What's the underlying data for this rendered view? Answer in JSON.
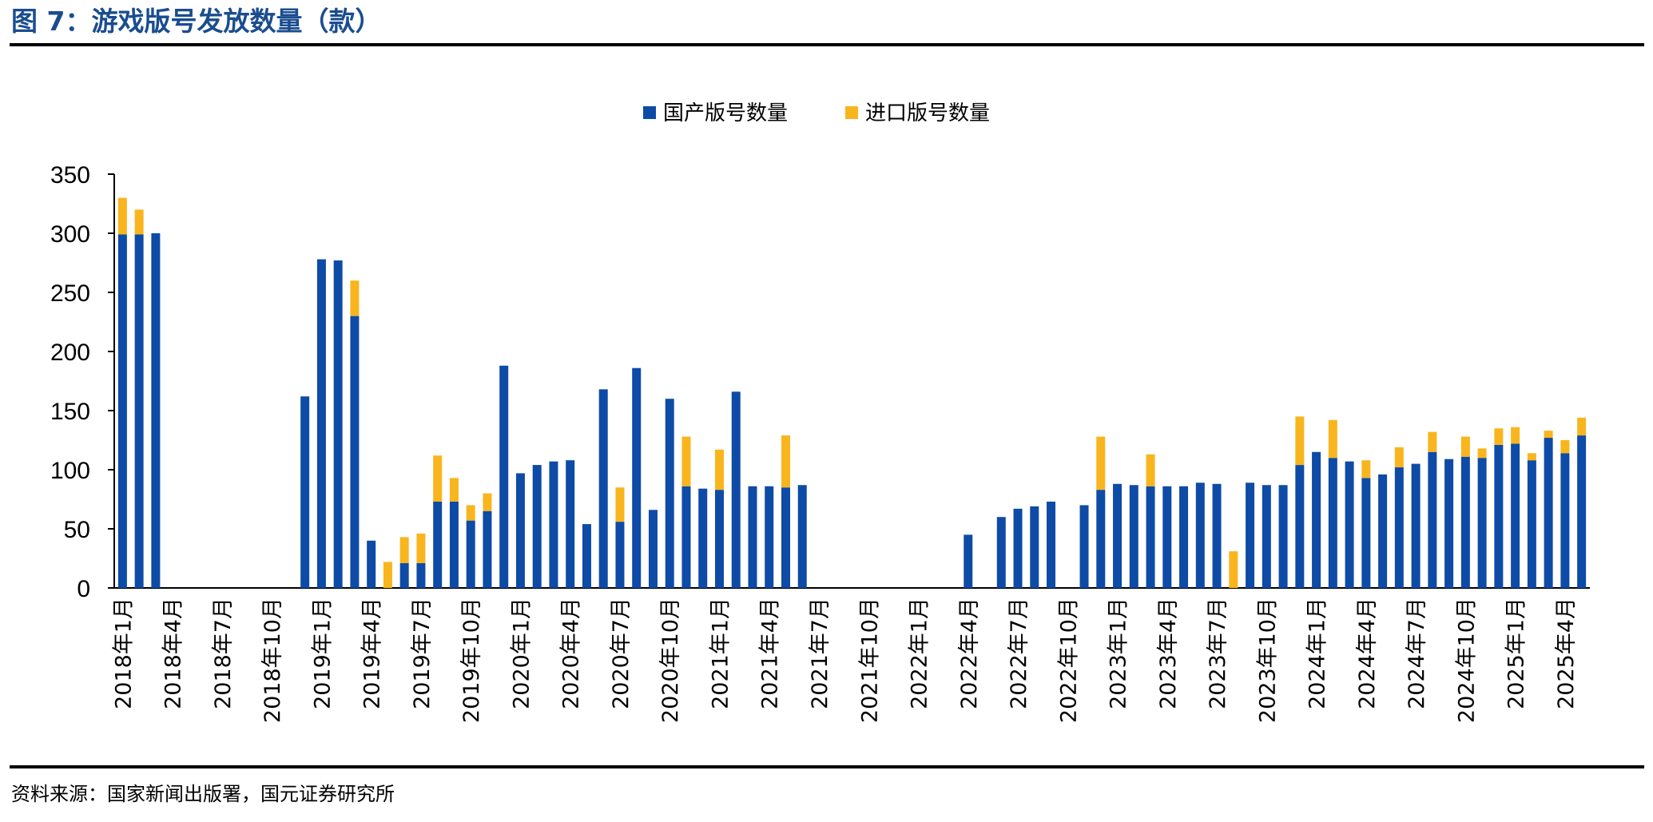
{
  "figure_title": "图 7：游戏版号发放数量（款）",
  "source_note": "资料来源：国家新闻出版署，国元证券研究所",
  "colors": {
    "domestic": "#0d4ba6",
    "imported": "#f9b51e",
    "title": "#1a4d8f"
  },
  "chart_data": {
    "type": "bar",
    "stacked": true,
    "legend_position": "top-center",
    "grid": false,
    "ylim": [
      0,
      350
    ],
    "yticks": [
      0,
      50,
      100,
      150,
      200,
      250,
      300,
      350
    ],
    "x_tick_labels": [
      "2018年1月",
      "2018年4月",
      "2018年7月",
      "2018年10月",
      "2019年1月",
      "2019年4月",
      "2019年7月",
      "2019年10月",
      "2020年1月",
      "2020年4月",
      "2020年7月",
      "2020年10月",
      "2021年1月",
      "2021年4月",
      "2021年7月",
      "2021年10月",
      "2022年1月",
      "2022年4月",
      "2022年7月",
      "2022年10月",
      "2023年1月",
      "2023年4月",
      "2023年7月",
      "2023年10月",
      "2024年1月",
      "2024年4月",
      "2024年7月",
      "2024年10月",
      "2025年1月",
      "2025年4月"
    ],
    "categories": [
      "2018-01",
      "2018-02",
      "2018-03",
      "2018-04",
      "2018-05",
      "2018-06",
      "2018-07",
      "2018-08",
      "2018-09",
      "2018-10",
      "2018-11",
      "2018-12",
      "2019-01",
      "2019-02",
      "2019-03",
      "2019-04",
      "2019-05",
      "2019-06",
      "2019-07",
      "2019-08",
      "2019-09",
      "2019-10",
      "2019-11",
      "2019-12",
      "2020-01",
      "2020-02",
      "2020-03",
      "2020-04",
      "2020-05",
      "2020-06",
      "2020-07",
      "2020-08",
      "2020-09",
      "2020-10",
      "2020-11",
      "2020-12",
      "2021-01",
      "2021-02",
      "2021-03",
      "2021-04",
      "2021-05",
      "2021-06",
      "2021-07",
      "2021-08",
      "2021-09",
      "2021-10",
      "2021-11",
      "2021-12",
      "2022-01",
      "2022-02",
      "2022-03",
      "2022-04",
      "2022-05",
      "2022-06",
      "2022-07",
      "2022-08",
      "2022-09",
      "2022-10",
      "2022-11",
      "2022-12",
      "2023-01",
      "2023-02",
      "2023-03",
      "2023-04",
      "2023-05",
      "2023-06",
      "2023-07",
      "2023-08",
      "2023-09",
      "2023-10",
      "2023-11",
      "2023-12",
      "2024-01",
      "2024-02",
      "2024-03",
      "2024-04",
      "2024-05",
      "2024-06",
      "2024-07",
      "2024-08",
      "2024-09",
      "2024-10",
      "2024-11",
      "2024-12",
      "2025-01",
      "2025-02",
      "2025-03",
      "2025-04",
      "2025-05"
    ],
    "series": [
      {
        "name": "国产版号数量",
        "values": [
          299,
          299,
          300,
          0,
          0,
          0,
          0,
          0,
          0,
          0,
          0,
          162,
          278,
          277,
          230,
          40,
          0,
          21,
          21,
          73,
          73,
          57,
          65,
          188,
          97,
          104,
          107,
          108,
          54,
          168,
          56,
          186,
          66,
          160,
          86,
          84,
          83,
          166,
          86,
          86,
          85,
          87,
          0,
          0,
          0,
          0,
          0,
          0,
          0,
          0,
          0,
          45,
          0,
          60,
          67,
          69,
          73,
          0,
          70,
          83,
          88,
          87,
          86,
          86,
          86,
          89,
          88,
          0,
          89,
          87,
          87,
          104,
          115,
          110,
          107,
          93,
          96,
          102,
          105,
          115,
          109,
          111,
          110,
          121,
          122,
          108,
          127,
          114,
          129
        ]
      },
      {
        "name": "进口版号数量",
        "values": [
          31,
          21,
          0,
          0,
          0,
          0,
          0,
          0,
          0,
          0,
          0,
          0,
          0,
          0,
          30,
          0,
          22,
          22,
          25,
          39,
          20,
          13,
          15,
          0,
          0,
          0,
          0,
          0,
          0,
          0,
          29,
          0,
          0,
          0,
          42,
          0,
          34,
          0,
          0,
          0,
          44,
          0,
          0,
          0,
          0,
          0,
          0,
          0,
          0,
          0,
          0,
          0,
          0,
          0,
          0,
          0,
          0,
          0,
          0,
          45,
          0,
          0,
          27,
          0,
          0,
          0,
          0,
          31,
          0,
          0,
          0,
          41,
          0,
          32,
          0,
          15,
          0,
          17,
          0,
          17,
          0,
          17,
          8,
          14,
          14,
          6,
          6,
          11,
          15
        ]
      }
    ]
  }
}
